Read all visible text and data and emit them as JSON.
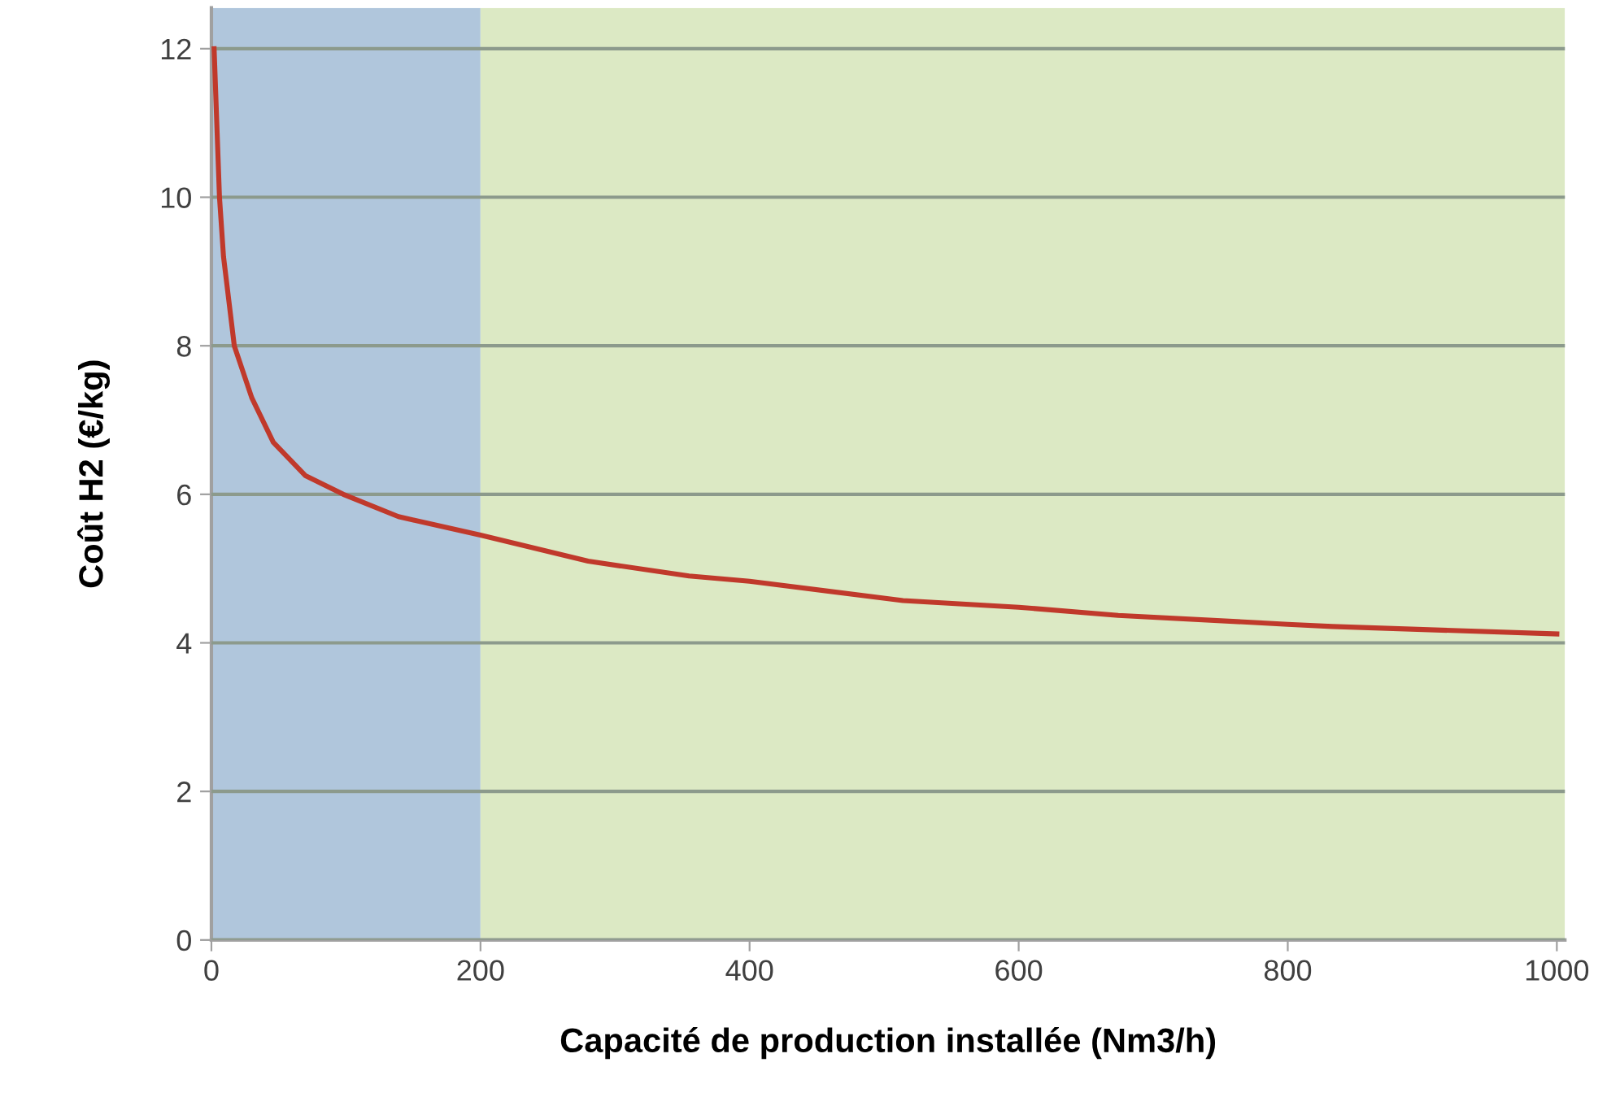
{
  "chart_data": {
    "type": "line",
    "xlabel": "Capacité de production installée (Nm3/h)",
    "ylabel": "Coût H2 (€/kg)",
    "x": [
      2,
      6,
      9,
      17,
      30,
      46,
      70,
      98,
      139,
      200,
      280,
      355,
      400,
      514,
      600,
      674,
      800,
      833,
      1000
    ],
    "series": [
      {
        "color": "#c0392b",
        "values": [
          12,
          10,
          9.2,
          8,
          7.3,
          6.7,
          6.25,
          6.0,
          5.7,
          5.45,
          5.1,
          4.9,
          4.83,
          4.57,
          4.48,
          4.37,
          4.25,
          4.22,
          4.12
        ]
      }
    ],
    "xlim": [
      0,
      1006
    ],
    "ylim": [
      0,
      12.55
    ],
    "xticks": [
      0,
      200,
      400,
      600,
      800,
      1000
    ],
    "yticks": [
      0,
      2,
      4,
      6,
      8,
      10,
      12
    ],
    "grid": "y",
    "marker": "none",
    "line_style": "solid",
    "bands": [
      {
        "axis": "x",
        "from": 0,
        "to": 200,
        "color": "#b0c6dc"
      },
      {
        "axis": "x",
        "from": 200,
        "to": 1006,
        "color": "#dce9c4"
      }
    ]
  }
}
